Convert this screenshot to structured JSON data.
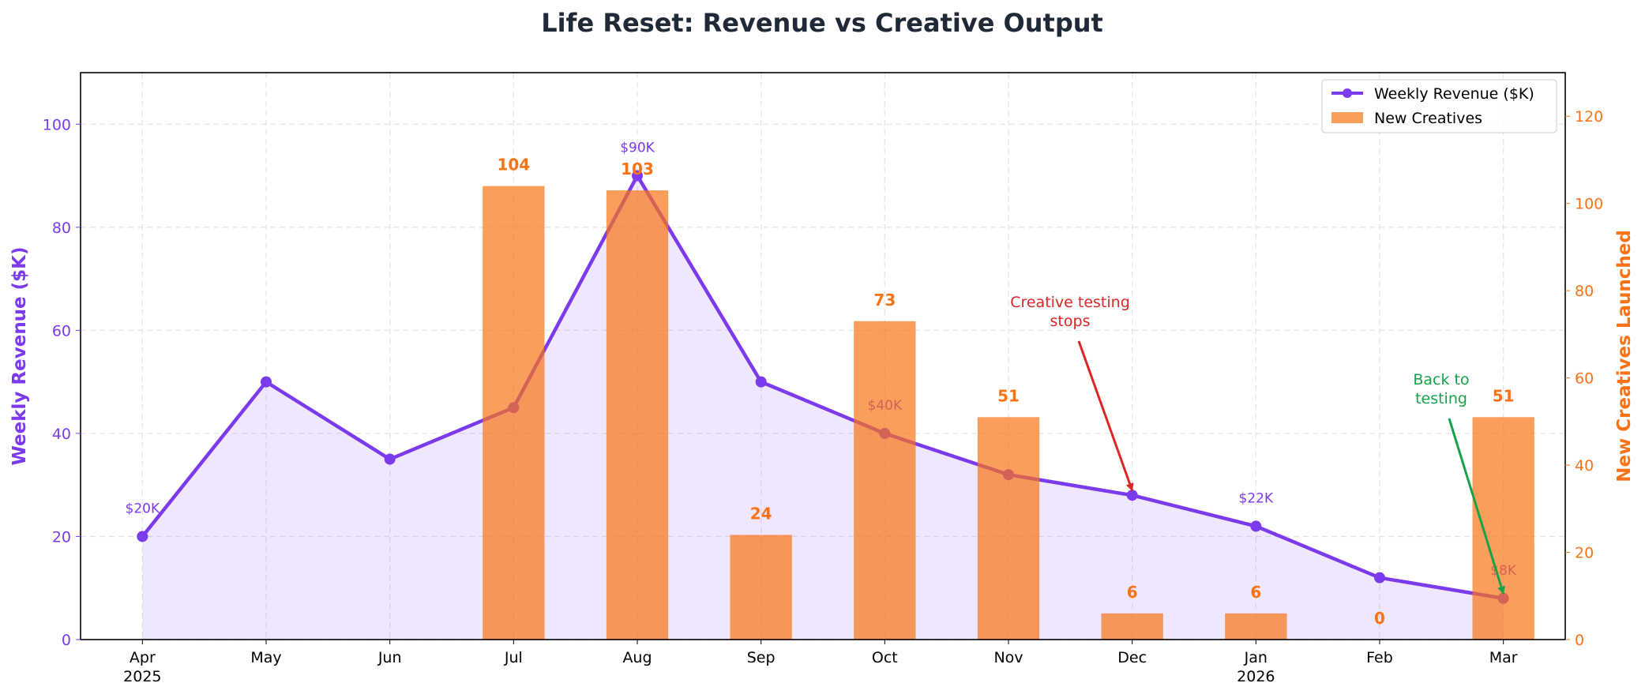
{
  "chart_data": {
    "type": "bar+line",
    "title": "Life Reset: Revenue vs Creative Output",
    "categories": [
      "Apr\n2025",
      "May",
      "Jun",
      "Jul",
      "Aug",
      "Sep",
      "Oct",
      "Nov",
      "Dec",
      "Jan\n2026",
      "Feb",
      "Mar"
    ],
    "series": [
      {
        "name": "Weekly Revenue ($K)",
        "type": "line",
        "axis": "left",
        "color": "#7c3aed",
        "values": [
          20,
          50,
          35,
          45,
          90,
          50,
          40,
          32,
          28,
          22,
          12,
          8
        ],
        "data_labels": [
          "$20K",
          null,
          null,
          null,
          "$90K",
          null,
          "$40K",
          null,
          null,
          "$22K",
          null,
          "$8K"
        ]
      },
      {
        "name": "New Creatives",
        "type": "bar",
        "axis": "right",
        "color": "#f97316",
        "values": [
          null,
          null,
          null,
          104,
          103,
          24,
          73,
          51,
          6,
          6,
          0,
          51
        ]
      }
    ],
    "ylabel": "Weekly Revenue ($K)",
    "ylabel_right": "New Creatives Launched",
    "ylim": [
      0,
      110
    ],
    "ylim_right": [
      0,
      130
    ],
    "yticks": [
      0,
      20,
      40,
      60,
      80,
      100
    ],
    "yticks_right": [
      0,
      20,
      40,
      60,
      80,
      100,
      120
    ],
    "grid": true,
    "legend": "top-right",
    "annotations": [
      {
        "lines": [
          "Creative testing",
          "stops"
        ],
        "target": "Dec",
        "color": "#dc2626"
      },
      {
        "lines": [
          "Back to",
          "testing"
        ],
        "target": "Mar",
        "color": "#16a34a"
      }
    ]
  }
}
